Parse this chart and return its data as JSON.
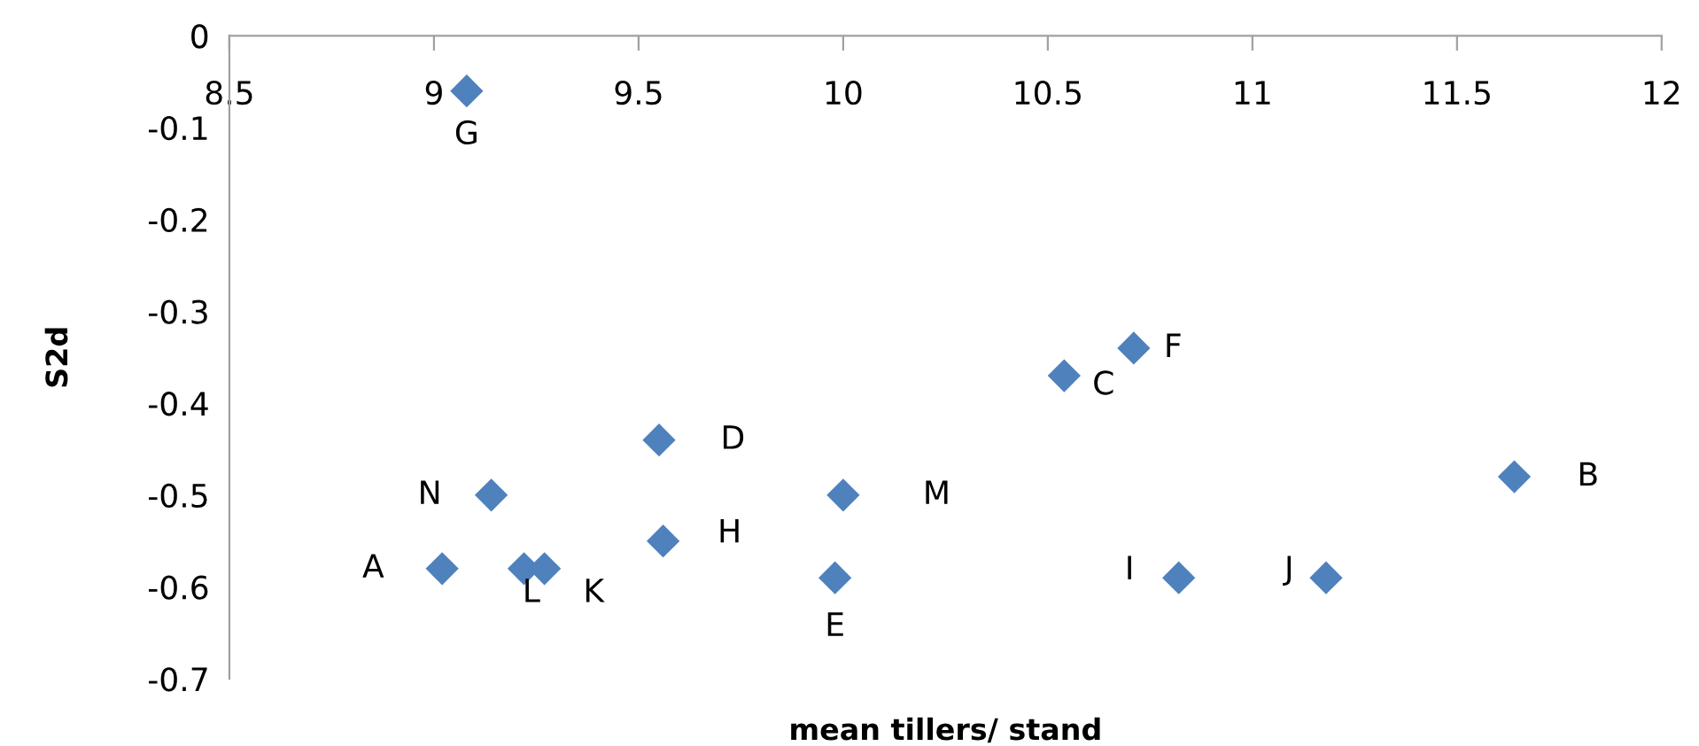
{
  "chart_data": {
    "type": "scatter",
    "xlabel": "mean tillers/ stand",
    "ylabel": "S2d",
    "x": [
      9.02,
      11.64,
      10.54,
      9.55,
      9.98,
      10.71,
      9.08,
      9.56,
      10.82,
      11.18,
      9.27,
      9.22,
      10.0,
      9.14
    ],
    "series": [
      {
        "color": "#4f81bd",
        "values": [
          -0.58,
          -0.48,
          -0.37,
          -0.44,
          -0.59,
          -0.34,
          -0.06,
          -0.55,
          -0.59,
          -0.59,
          -0.58,
          -0.58,
          -0.5,
          -0.5
        ]
      }
    ],
    "annotations": [
      {
        "text": "A",
        "x": 9.02,
        "y": -0.58
      },
      {
        "text": "B",
        "x": 11.64,
        "y": -0.48
      },
      {
        "text": "C",
        "x": 10.54,
        "y": -0.37
      },
      {
        "text": "D",
        "x": 9.55,
        "y": -0.44
      },
      {
        "text": "E",
        "x": 9.98,
        "y": -0.59
      },
      {
        "text": "F",
        "x": 10.71,
        "y": -0.34
      },
      {
        "text": "G",
        "x": 9.08,
        "y": -0.06
      },
      {
        "text": "H",
        "x": 9.56,
        "y": -0.55
      },
      {
        "text": "I",
        "x": 10.82,
        "y": -0.59
      },
      {
        "text": "J",
        "x": 11.18,
        "y": -0.59
      },
      {
        "text": "K",
        "x": 9.27,
        "y": -0.58
      },
      {
        "text": "L",
        "x": 9.22,
        "y": -0.58
      },
      {
        "text": "M",
        "x": 10.0,
        "y": -0.5
      },
      {
        "text": "N",
        "x": 9.14,
        "y": -0.5
      }
    ],
    "xlim": [
      8.5,
      12
    ],
    "ylim": [
      -0.7,
      0
    ],
    "xticks": [
      8.5,
      9,
      9.5,
      10,
      10.5,
      11,
      11.5,
      12
    ],
    "yticks": [
      0,
      -0.1,
      -0.2,
      -0.3,
      -0.4,
      -0.5,
      -0.6,
      -0.7
    ],
    "marker": "diamond",
    "legend": false
  }
}
